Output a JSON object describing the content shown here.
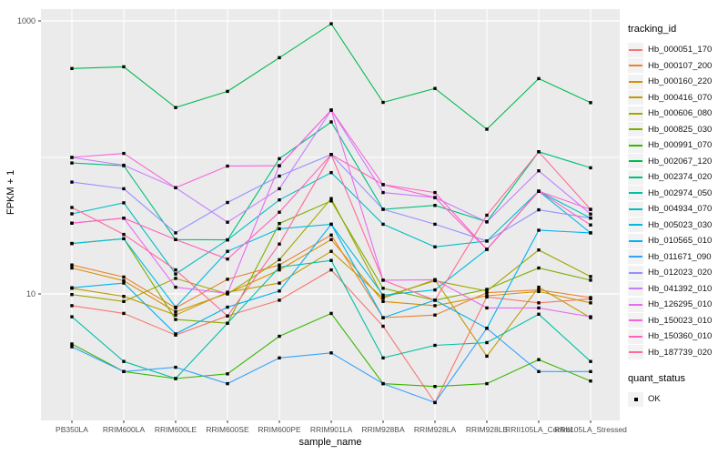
{
  "chart_data": {
    "type": "line",
    "title": "",
    "xlabel": "sample_name",
    "ylabel": "FPKM + 1",
    "y_scale": "log10",
    "y_tick_labels": [
      "10",
      "1000"
    ],
    "y_tick_values": [
      10,
      1000
    ],
    "y_minor_gridline_values": [
      100
    ],
    "ylim": [
      1.2,
      1200
    ],
    "grid": true,
    "legend_position": "right",
    "point_shape": "filled-square",
    "point_color": "#000000",
    "categories": [
      "PB350LA",
      "RRIM600LA",
      "RRIM600LE",
      "RRIM600SE",
      "RRIM600PE",
      "RRIM901LA",
      "RRIM928BA",
      "RRIM928LA",
      "RRIM928LE",
      "RRII105LA_Control",
      "RRII105LA_Stressed"
    ],
    "series": [
      {
        "name": "Hb_000051_170",
        "color": "#F8766D",
        "values": [
          8.2,
          7.2,
          5.0,
          6.9,
          9.0,
          15.0,
          5.8,
          1.6,
          9.5,
          8.6,
          9.2
        ]
      },
      {
        "name": "Hb_000107_200",
        "color": "#EA8331",
        "values": [
          16.3,
          13.3,
          7.9,
          12.8,
          16.3,
          27.0,
          6.7,
          7.0,
          10.2,
          10.7,
          9.4
        ]
      },
      {
        "name": "Hb_000160_220",
        "color": "#D89000",
        "values": [
          15.5,
          12.5,
          7.4,
          10.1,
          15.0,
          25.0,
          8.8,
          8.2,
          9.7,
          10.4,
          8.6
        ]
      },
      {
        "name": "Hb_000416_070",
        "color": "#C09B00",
        "values": [
          11.0,
          9.6,
          7.0,
          10.3,
          12.0,
          20.5,
          9.3,
          12.7,
          3.5,
          11.2,
          6.7
        ]
      },
      {
        "name": "Hb_000606_080",
        "color": "#A3A500",
        "values": [
          9.9,
          8.8,
          13.0,
          10.0,
          17.8,
          50.0,
          9.5,
          12.5,
          10.5,
          21.0,
          13.4
        ]
      },
      {
        "name": "Hb_000825_030",
        "color": "#7CAE00",
        "values": [
          23.4,
          25.4,
          6.5,
          6.1,
          32.8,
          48.0,
          11.0,
          9.0,
          10.8,
          15.5,
          12.6
        ]
      },
      {
        "name": "Hb_000991_070",
        "color": "#39B600",
        "values": [
          4.3,
          2.7,
          2.4,
          2.6,
          4.9,
          7.2,
          2.2,
          2.1,
          2.2,
          3.3,
          2.3
        ]
      },
      {
        "name": "Hb_002067_120",
        "color": "#00BB4E",
        "values": [
          448,
          461,
          232,
          305,
          538,
          953,
          253,
          320,
          161,
          378,
          252
        ]
      },
      {
        "name": "Hb_002374_020",
        "color": "#00BF7D",
        "values": [
          91,
          87,
          25,
          24.9,
          97.8,
          182,
          41.7,
          44.5,
          33.8,
          110,
          84
        ]
      },
      {
        "name": "Hb_002974_050",
        "color": "#00C1A3",
        "values": [
          6.8,
          3.2,
          2.4,
          6.1,
          15.7,
          17.6,
          3.4,
          4.2,
          4.4,
          7.1,
          3.2
        ]
      },
      {
        "name": "Hb_004934_070",
        "color": "#00BFC4",
        "values": [
          38.6,
          46.5,
          14.0,
          24.9,
          48.8,
          77.4,
          32.4,
          22.1,
          24.4,
          56.6,
          36.0
        ]
      },
      {
        "name": "Hb_005023_030",
        "color": "#00BAE0",
        "values": [
          23.4,
          25.4,
          8.0,
          20.5,
          30.0,
          32.4,
          9.8,
          10.7,
          21.2,
          56.6,
          28.0
        ]
      },
      {
        "name": "Hb_010565_010",
        "color": "#00B0F6",
        "values": [
          11.1,
          12.0,
          5.1,
          8.0,
          10.5,
          32.4,
          6.7,
          9.0,
          5.6,
          29.3,
          28.0
        ]
      },
      {
        "name": "Hb_011671_090",
        "color": "#35A2FF",
        "values": [
          4.1,
          2.7,
          2.9,
          2.2,
          3.4,
          3.7,
          2.2,
          1.6,
          5.6,
          2.7,
          2.7
        ]
      },
      {
        "name": "Hb_012023_020",
        "color": "#9590FF",
        "values": [
          66,
          59,
          28,
          46.8,
          73,
          105,
          41.7,
          32.4,
          24.4,
          41.3,
          36
        ]
      },
      {
        "name": "Hb_041392_010",
        "color": "#C77CFF",
        "values": [
          100,
          87.7,
          60,
          33.5,
          59,
          222,
          55.3,
          50.8,
          33.7,
          79.8,
          38.5
        ]
      },
      {
        "name": "Hb_126295_010",
        "color": "#E76BF3",
        "values": [
          33,
          35.9,
          11.2,
          10.1,
          87,
          222,
          12.6,
          12.7,
          7.9,
          7.9,
          6.8
        ]
      },
      {
        "name": "Hb_150023_010",
        "color": "#FA62DB",
        "values": [
          100,
          107,
          60,
          86.4,
          87,
          222,
          63.2,
          50.8,
          21.2,
          56.6,
          41.6
        ]
      },
      {
        "name": "Hb_150360_010",
        "color": "#FF62BC",
        "values": [
          33,
          35.9,
          25,
          18.0,
          39.7,
          105,
          63.2,
          55.3,
          21.2,
          56.6,
          32
        ]
      },
      {
        "name": "Hb_187739_020",
        "color": "#FF6A98",
        "values": [
          43,
          27.3,
          15,
          6.9,
          23.2,
          105,
          12.6,
          9.0,
          37.7,
          110,
          41.6
        ]
      }
    ],
    "legend": {
      "color_title": "tracking_id",
      "shape_title": "quant_status",
      "shape_label": "OK"
    }
  },
  "style_colors": {
    "panel_bg": "#EBEBEB",
    "gridline": "#FFFFFF",
    "axis_text": "#4D4D4D",
    "tick_mark": "#333333",
    "legend_key_bg": "#F2F2F2"
  }
}
